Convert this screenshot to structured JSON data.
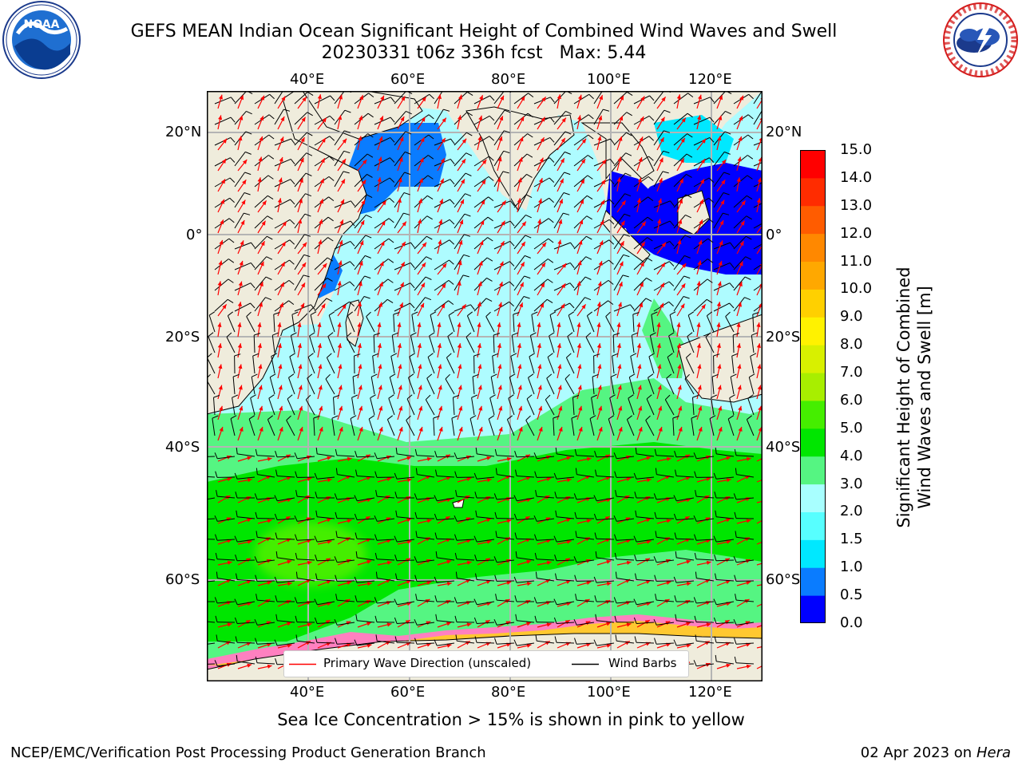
{
  "header": {
    "title_line1": "GEFS MEAN Indian Ocean Significant Height of Combined Wind Waves and Swell",
    "title_line2": "20230331 t06z 336h fcst   Max: 5.44"
  },
  "logos": {
    "left": {
      "text": "NOAA",
      "ring_text": "NATIONAL OCEANIC AND ATMOSPHERIC ADMINISTRATION · U.S. DEPARTMENT OF COMMERCE"
    },
    "right": {
      "ring_text": "NATIONAL WEATHER SERVICE"
    }
  },
  "map": {
    "lon_labels_top": [
      "40°E",
      "60°E",
      "80°E",
      "100°E",
      "120°E"
    ],
    "lon_labels_bottom": [
      "40°E",
      "60°E",
      "80°E",
      "100°E",
      "120°E"
    ],
    "lat_labels_left": [
      "20°N",
      "0°",
      "20°S",
      "40°S",
      "60°S"
    ],
    "lat_labels_right": [
      "20°N",
      "0°",
      "20°S",
      "40°S",
      "60°S"
    ],
    "colors": {
      "land": "#efecdc",
      "grid": "#b4b4b4",
      "wave_arrow": "#ff0000",
      "wind_barb": "#000000"
    }
  },
  "colorbar": {
    "title_line1": "Significant Height of Combined",
    "title_line2": "Wind Waves and Swell [m]",
    "ticks": [
      "0.0",
      "0.5",
      "1.0",
      "1.5",
      "2.0",
      "3.0",
      "4.0",
      "5.0",
      "6.0",
      "7.0",
      "8.0",
      "9.0",
      "10.0",
      "11.0",
      "12.0",
      "13.0",
      "14.0",
      "15.0"
    ],
    "colors": [
      "#0000ff",
      "#0a7cff",
      "#00e8ff",
      "#57ffff",
      "#a8ffff",
      "#55f582",
      "#00e600",
      "#45ee00",
      "#a8ee00",
      "#d8f000",
      "#fff200",
      "#ffd000",
      "#ffa800",
      "#ff8800",
      "#ff5c00",
      "#ff2c00",
      "#ff0000"
    ]
  },
  "legend": {
    "wave_label": "Primary Wave Direction (unscaled)",
    "wind_label": "Wind Barbs"
  },
  "footer": {
    "caption": "Sea Ice Concentration > 15% is shown in pink to yellow",
    "left": "NCEP/EMC/Verification Post Processing Product Generation Branch",
    "right_date": "02 Apr 2023 on ",
    "right_host": "Hera"
  }
}
